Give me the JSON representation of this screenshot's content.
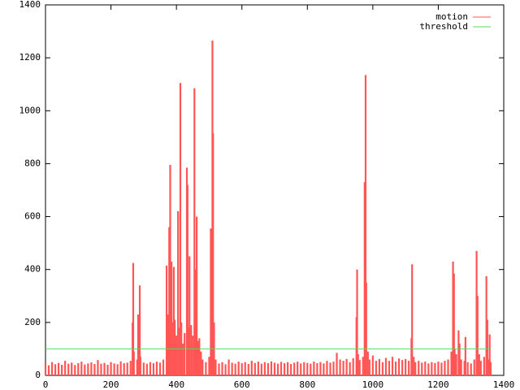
{
  "chart_data": {
    "type": "impulses",
    "xlim": [
      0,
      1400
    ],
    "ylim": [
      0,
      1400
    ],
    "xticks": [
      0,
      200,
      400,
      600,
      800,
      1000,
      1200,
      1400
    ],
    "yticks": [
      0,
      200,
      400,
      600,
      800,
      1000,
      1200,
      1400
    ],
    "legend": "top-right",
    "series": [
      {
        "name": "motion",
        "color": "#ff5555",
        "style": "impulses",
        "x": [
          0,
          10,
          20,
          30,
          40,
          50,
          60,
          70,
          80,
          90,
          100,
          110,
          120,
          130,
          140,
          150,
          160,
          170,
          180,
          190,
          200,
          210,
          220,
          230,
          240,
          250,
          260,
          266,
          268,
          270,
          280,
          283,
          288,
          290,
          300,
          310,
          320,
          330,
          340,
          350,
          360,
          370,
          375,
          378,
          381,
          385,
          390,
          392,
          395,
          400,
          405,
          410,
          412,
          415,
          420,
          425,
          432,
          434,
          438,
          440,
          445,
          450,
          455,
          457,
          460,
          462,
          466,
          470,
          475,
          480,
          490,
          500,
          505,
          510,
          512,
          515,
          520,
          530,
          540,
          550,
          560,
          570,
          580,
          590,
          600,
          610,
          620,
          630,
          640,
          650,
          660,
          670,
          680,
          690,
          700,
          710,
          720,
          730,
          740,
          750,
          760,
          770,
          780,
          790,
          800,
          810,
          820,
          830,
          840,
          850,
          860,
          870,
          880,
          890,
          900,
          910,
          920,
          930,
          940,
          950,
          952,
          955,
          960,
          970,
          975,
          978,
          980,
          985,
          990,
          1000,
          1010,
          1020,
          1030,
          1040,
          1050,
          1060,
          1070,
          1080,
          1090,
          1100,
          1110,
          1118,
          1120,
          1125,
          1130,
          1140,
          1150,
          1160,
          1170,
          1180,
          1190,
          1200,
          1210,
          1220,
          1230,
          1240,
          1245,
          1248,
          1250,
          1255,
          1262,
          1265,
          1270,
          1280,
          1283,
          1290,
          1300,
          1310,
          1317,
          1320,
          1325,
          1330,
          1340,
          1347,
          1350,
          1355,
          1357,
          1360
        ],
        "values": [
          45,
          38,
          50,
          42,
          47,
          40,
          55,
          44,
          48,
          39,
          46,
          52,
          41,
          45,
          49,
          43,
          58,
          44,
          47,
          40,
          50,
          45,
          42,
          53,
          46,
          48,
          55,
          200,
          425,
          90,
          60,
          230,
          340,
          70,
          48,
          44,
          50,
          46,
          52,
          48,
          60,
          415,
          230,
          560,
          795,
          430,
          200,
          410,
          210,
          150,
          620,
          180,
          1105,
          200,
          120,
          160,
          785,
          720,
          180,
          450,
          190,
          150,
          1085,
          400,
          250,
          600,
          130,
          140,
          90,
          60,
          50,
          70,
          555,
          1265,
          915,
          200,
          60,
          45,
          50,
          42,
          60,
          48,
          44,
          52,
          46,
          50,
          43,
          55,
          47,
          52,
          44,
          50,
          46,
          53,
          48,
          44,
          51,
          46,
          50,
          43,
          48,
          52,
          45,
          50,
          47,
          44,
          52,
          46,
          50,
          45,
          55,
          48,
          52,
          85,
          60,
          55,
          62,
          50,
          65,
          220,
          400,
          80,
          58,
          70,
          730,
          1135,
          350,
          90,
          60,
          75,
          55,
          62,
          50,
          66,
          55,
          70,
          52,
          64,
          58,
          62,
          55,
          140,
          420,
          70,
          50,
          55,
          48,
          52,
          45,
          50,
          47,
          52,
          48,
          55,
          60,
          90,
          430,
          385,
          100,
          80,
          170,
          120,
          60,
          55,
          145,
          50,
          45,
          60,
          470,
          300,
          80,
          55,
          70,
          375,
          210,
          60,
          155,
          50
        ]
      },
      {
        "name": "threshold",
        "color": "#55dd55",
        "style": "lines",
        "x": [
          0,
          1360
        ],
        "values": [
          100,
          100
        ]
      }
    ]
  }
}
